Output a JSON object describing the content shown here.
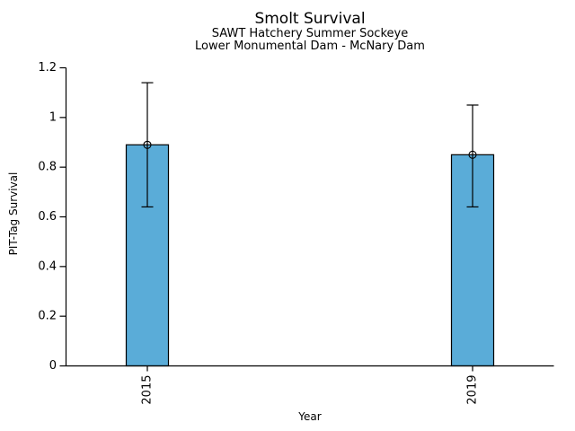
{
  "chart_data": {
    "type": "bar",
    "title": "Smolt Survival",
    "subtitle_lines": [
      "SAWT Hatchery Summer Sockeye",
      "Lower Monumental Dam - McNary Dam"
    ],
    "xlabel": "Year",
    "ylabel": "PIT-Tag Survival",
    "categories": [
      "2015",
      "2019"
    ],
    "x_values": [
      2015,
      2019
    ],
    "xlim": [
      2014,
      2020
    ],
    "values": [
      0.89,
      0.85
    ],
    "error_low": [
      0.64,
      0.64
    ],
    "error_high": [
      1.14,
      1.05
    ],
    "ylim": [
      0,
      1.2
    ],
    "yticks": [
      0,
      0.2,
      0.4,
      0.6,
      0.8,
      1,
      1.2
    ],
    "ytick_labels": [
      "0",
      "0.2",
      "0.4",
      "0.6",
      "0.8",
      "1",
      "1.2"
    ],
    "grid": false,
    "legend": null,
    "marker": "open-circle",
    "colors": {
      "bar_fill": "#5AACD8",
      "bar_edge": "#000000",
      "error_bar": "#000000",
      "axis": "#000000",
      "text": "#000000",
      "background": "#ffffff"
    }
  }
}
